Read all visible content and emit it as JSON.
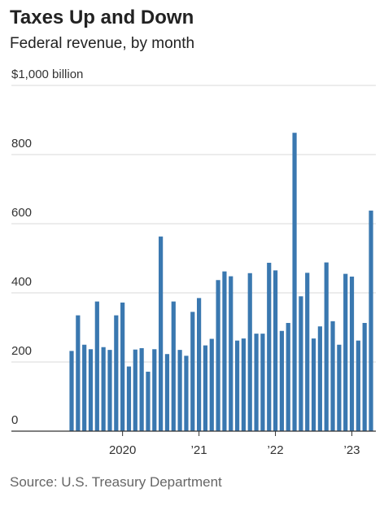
{
  "chart_data": {
    "type": "bar",
    "title": "Taxes Up and Down",
    "subtitle": "Federal revenue, by month",
    "source": "Source: U.S. Treasury Department",
    "categories": [
      null,
      null,
      null,
      null,
      null,
      null,
      null,
      null,
      "2020",
      null,
      null,
      null,
      null,
      null,
      null,
      null,
      null,
      null,
      null,
      null,
      "’21",
      null,
      null,
      null,
      null,
      null,
      null,
      null,
      null,
      null,
      null,
      null,
      "’22",
      null,
      null,
      null,
      null,
      null,
      null,
      null,
      null,
      null,
      null,
      null,
      "’23",
      null,
      null,
      null
    ],
    "values": [
      232,
      335,
      250,
      237,
      375,
      243,
      235,
      335,
      372,
      187,
      236,
      240,
      172,
      237,
      563,
      223,
      375,
      235,
      218,
      345,
      385,
      248,
      267,
      437,
      462,
      448,
      262,
      268,
      457,
      282,
      282,
      487,
      465,
      290,
      313,
      863,
      390,
      458,
      268,
      303,
      488,
      318,
      250,
      455,
      447,
      262,
      313,
      638
    ],
    "color": "#3a78b0",
    "ylim": [
      0,
      1000
    ],
    "yticks": [
      0,
      200,
      400,
      600,
      800,
      {
        "value": 1000,
        "label": "$1,000 billion"
      }
    ],
    "grid": true
  }
}
